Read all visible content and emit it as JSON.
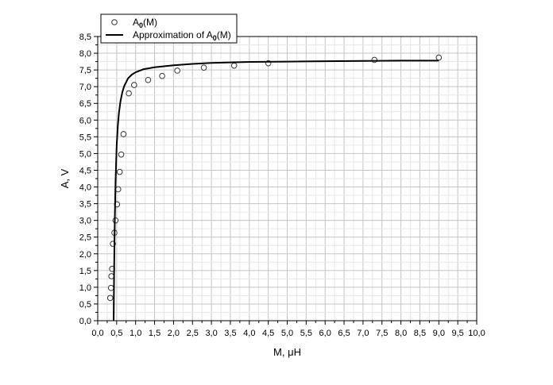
{
  "chart_data": {
    "type": "scatter",
    "title": "",
    "xlabel": "M, μH",
    "ylabel": "A, V",
    "xlim": [
      0.0,
      10.0
    ],
    "ylim": [
      0.0,
      8.5
    ],
    "grid": true,
    "legend_position": "top-left",
    "x_tick_labels": [
      "0,0",
      "0,5",
      "1,0",
      "1,5",
      "2,0",
      "2,5",
      "3,0",
      "3,5",
      "4,0",
      "4,5",
      "5,0",
      "5,5",
      "6,0",
      "6,5",
      "7,0",
      "7,5",
      "8,0",
      "8,5",
      "9,0",
      "9,5",
      "10,0"
    ],
    "y_tick_labels": [
      "0,0",
      "0,5",
      "1,0",
      "1,5",
      "2,0",
      "2,5",
      "3,0",
      "3,5",
      "4,0",
      "4,5",
      "5,0",
      "5,5",
      "6,0",
      "6,5",
      "7,0",
      "7,5",
      "8,0",
      "8,5"
    ],
    "series": [
      {
        "name": "A0(M)",
        "legend_label": {
          "main": "A",
          "sub": "0",
          "tail": "(M)"
        },
        "style": "open-circle",
        "x": [
          0.33,
          0.35,
          0.36,
          0.38,
          0.4,
          0.44,
          0.47,
          0.51,
          0.54,
          0.58,
          0.62,
          0.68,
          0.82,
          0.96,
          1.33,
          1.7,
          2.1,
          2.8,
          3.6,
          4.5,
          7.3,
          9.0
        ],
        "y": [
          0.68,
          0.98,
          1.33,
          1.55,
          2.3,
          2.63,
          3.0,
          3.48,
          3.93,
          4.45,
          4.97,
          5.58,
          6.8,
          7.05,
          7.2,
          7.32,
          7.48,
          7.57,
          7.63,
          7.7,
          7.8,
          7.87
        ]
      },
      {
        "name": "Approximation of A0(M)",
        "legend_label": {
          "main": "Approximation of A",
          "sub": "0",
          "tail": "(M)"
        },
        "style": "line",
        "x": [
          0.42,
          0.43,
          0.44,
          0.45,
          0.47,
          0.5,
          0.53,
          0.56,
          0.6,
          0.65,
          0.7,
          0.8,
          0.9,
          1.0,
          1.2,
          1.5,
          2.0,
          2.5,
          3.0,
          4.0,
          5.0,
          6.0,
          7.0,
          8.0,
          9.0
        ],
        "y": [
          0.0,
          1.2,
          2.2,
          3.0,
          4.15,
          5.23,
          5.83,
          6.22,
          6.56,
          6.84,
          7.02,
          7.25,
          7.36,
          7.43,
          7.52,
          7.58,
          7.64,
          7.68,
          7.71,
          7.74,
          7.75,
          7.76,
          7.77,
          7.78,
          7.78
        ]
      }
    ]
  }
}
